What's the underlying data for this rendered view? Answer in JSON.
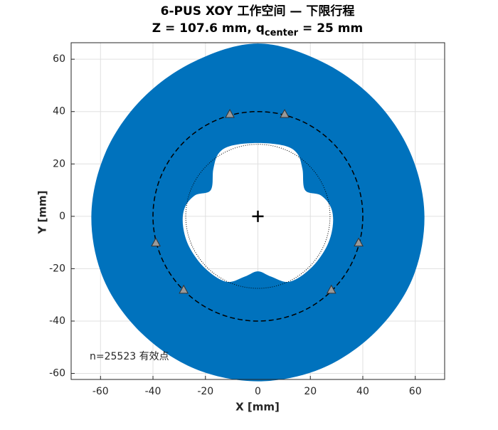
{
  "chart_data": {
    "type": "area",
    "title": "6-PUS XOY 工作空间 — 下限行程",
    "subtitle": {
      "main": "Z = 107.6 mm,  q",
      "sub": "center",
      "rest": " = 25 mm"
    },
    "xlabel": "X [mm]",
    "ylabel": "Y [mm]",
    "xlim": [
      -71.2,
      71.2
    ],
    "ylim": [
      -62.3,
      66.3
    ],
    "xticks": [
      -60,
      -40,
      -20,
      0,
      20,
      40,
      60
    ],
    "yticks": [
      -60,
      -40,
      -20,
      0,
      20,
      40,
      60
    ],
    "grid": true,
    "region": {
      "color": "#0072bd",
      "outer": {
        "x": [
          0,
          -24.5,
          -44.5,
          -58.2,
          -63.5,
          -58.7,
          -44.5,
          -24.1,
          0,
          24.1,
          44.5,
          58.7,
          63.5,
          58.2,
          44.5,
          24.5
        ],
        "y": [
          66,
          59,
          44.5,
          24.1,
          0,
          -24.3,
          -44.5,
          -58.2,
          -63,
          -58.2,
          -44.5,
          -24.3,
          0,
          24.1,
          44.5,
          59
        ]
      },
      "hole": {
        "x": [
          0,
          -10,
          -15,
          -17,
          -18,
          -24,
          -28,
          -28.5,
          -26,
          -20,
          -12,
          -5,
          0,
          5,
          12,
          20,
          26,
          28.5,
          28,
          24,
          18,
          17,
          15,
          10
        ],
        "y": [
          28,
          27,
          24,
          18,
          10,
          8,
          3,
          -4,
          -12,
          -20,
          -25,
          -23,
          -21,
          -23,
          -25,
          -20,
          -12,
          -4,
          3,
          8,
          10,
          18,
          24,
          27
        ]
      }
    },
    "circles": [
      {
        "r": 40,
        "style": "dashed"
      },
      {
        "r": 27.5,
        "style": "dotted"
      }
    ],
    "markers": {
      "x": [
        -10.7,
        10.2,
        -38.9,
        38.4,
        -28.3,
        28
      ],
      "y": [
        39.1,
        39.1,
        -10,
        -10,
        -28,
        -28
      ],
      "color": "#999999"
    },
    "center": {
      "x": 0,
      "y": 0
    },
    "annotation": "n=25523 有效点"
  }
}
